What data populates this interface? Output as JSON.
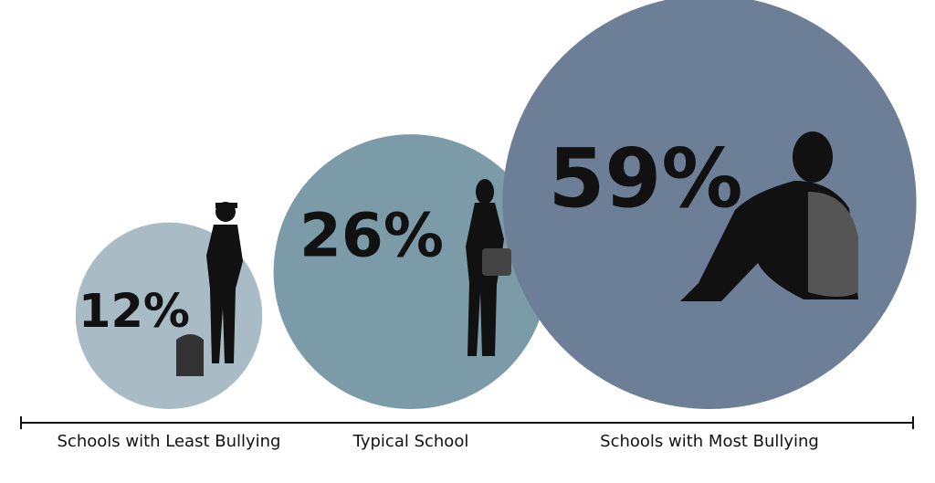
{
  "chart_data": {
    "type": "bubble",
    "categories": [
      "Schools with Least Bullying",
      "Typical School",
      "Schools with Most Bullying"
    ],
    "values": [
      12,
      26,
      59
    ],
    "value_labels": [
      "12%",
      "26%",
      "59%"
    ],
    "colors": [
      "#a9bcc6",
      "#7c9ba8",
      "#6c7f96"
    ]
  }
}
